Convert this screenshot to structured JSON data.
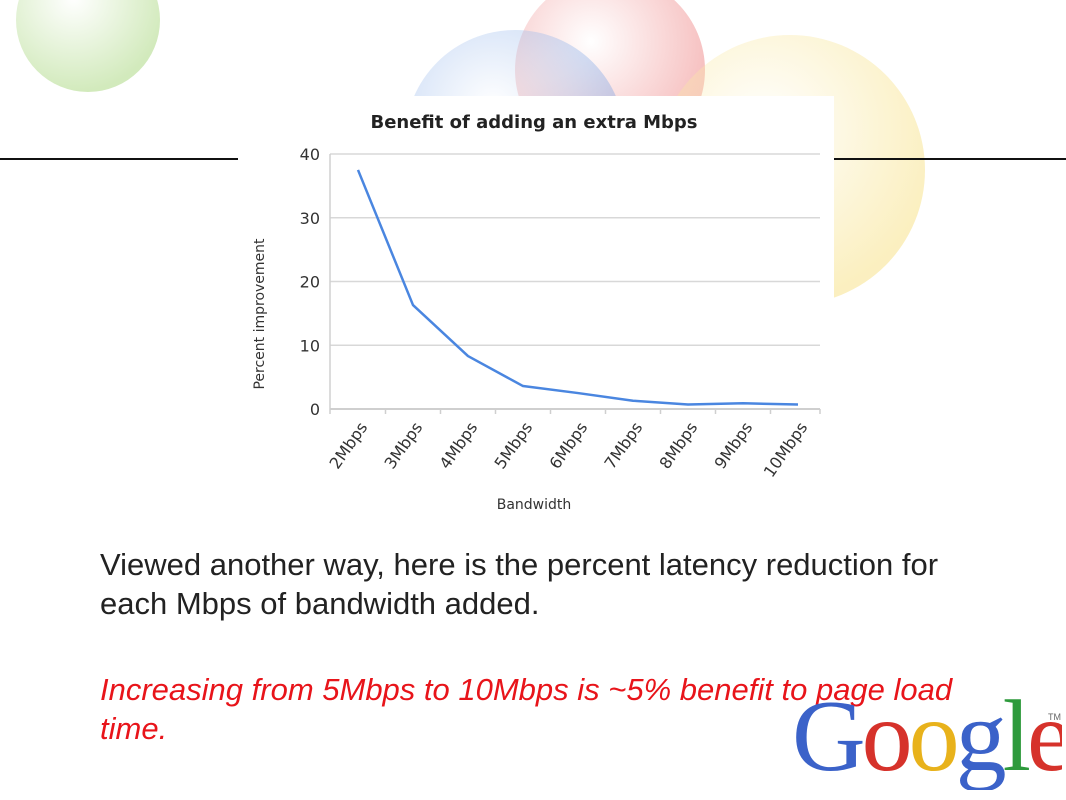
{
  "slide": {
    "body_text": "Viewed another way, here is the percent latency reduction for each Mbps of bandwidth added.",
    "highlight_text": "Increasing from 5Mbps to 10Mbps is ~5% benefit to page load time.",
    "logo": {
      "letters": [
        "G",
        "o",
        "o",
        "g",
        "l",
        "e"
      ],
      "colors": [
        "#3b62c9",
        "#d6322b",
        "#e8b21b",
        "#3b62c9",
        "#2e9a3c",
        "#d6322b"
      ],
      "tm": "TM"
    },
    "background_colors": [
      "#9bd06a",
      "#e85a5a",
      "#5b8fe0",
      "#f3d24a"
    ]
  },
  "chart_data": {
    "type": "line",
    "title": "Benefit of adding an extra Mbps",
    "xlabel": "Bandwidth",
    "ylabel": "Percent improvement",
    "categories": [
      "2Mbps",
      "3Mbps",
      "4Mbps",
      "5Mbps",
      "6Mbps",
      "7Mbps",
      "8Mbps",
      "9Mbps",
      "10Mbps"
    ],
    "series": [
      {
        "values": [
          37.5,
          16.3,
          8.3,
          3.6,
          2.5,
          1.3,
          0.7,
          0.9,
          0.7
        ],
        "color": "#4a86e0"
      }
    ],
    "ylim": [
      0,
      40
    ],
    "yticks": [
      0,
      10,
      20,
      30,
      40
    ],
    "grid": true,
    "legend": "none"
  }
}
